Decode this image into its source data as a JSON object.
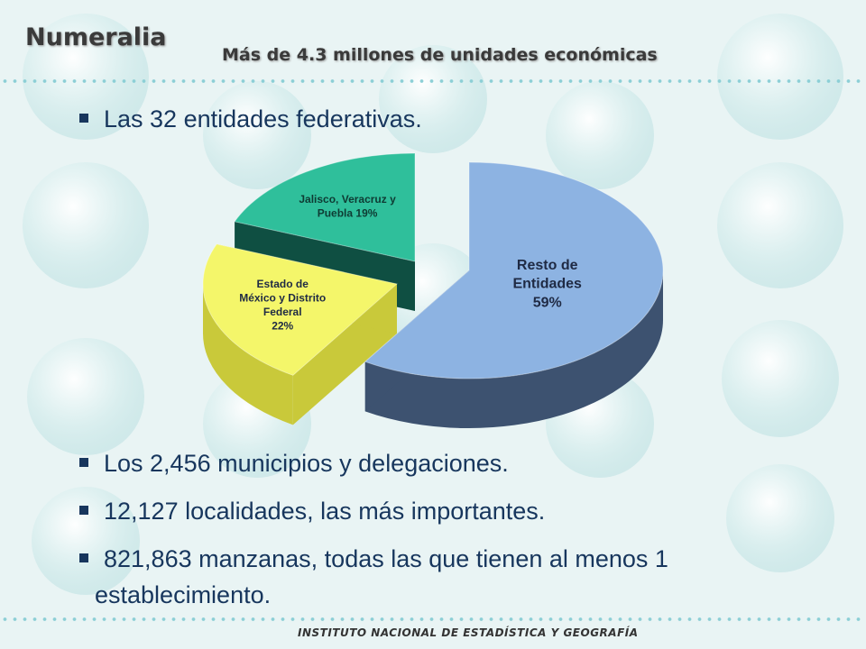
{
  "header": {
    "title": "Numeralia",
    "subtitle": "Más de 4.3 millones de unidades económicas"
  },
  "bullets": [
    {
      "text": "Las 32 entidades federativas."
    },
    {
      "text": "Los 2,456 municipios y delegaciones."
    },
    {
      "text": "12,127 localidades, las más importantes."
    },
    {
      "text": "821,863 manzanas, todas las que tienen al menos 1"
    },
    {
      "text": "establecimiento."
    }
  ],
  "chart_data": {
    "type": "pie",
    "slices": [
      {
        "label_lines": [
          "Resto de",
          "Entidades",
          "59%"
        ],
        "value": 59,
        "color": "#8db3e2",
        "side_color": "#3d5270"
      },
      {
        "label_lines": [
          "Estado de",
          "México y Distrito",
          "Federal",
          "22%"
        ],
        "value": 22,
        "color": "#f4f66a",
        "side_color": "#c9c93a"
      },
      {
        "label_lines": [
          "Jalisco, Veracruz y",
          "Puebla 19%"
        ],
        "value": 19,
        "color": "#2fbf9b",
        "side_color": "#0f4f42"
      }
    ]
  },
  "footer": {
    "institution": "INSTITUTO NACIONAL DE ESTADÍSTICA Y GEOGRAFÍA"
  }
}
